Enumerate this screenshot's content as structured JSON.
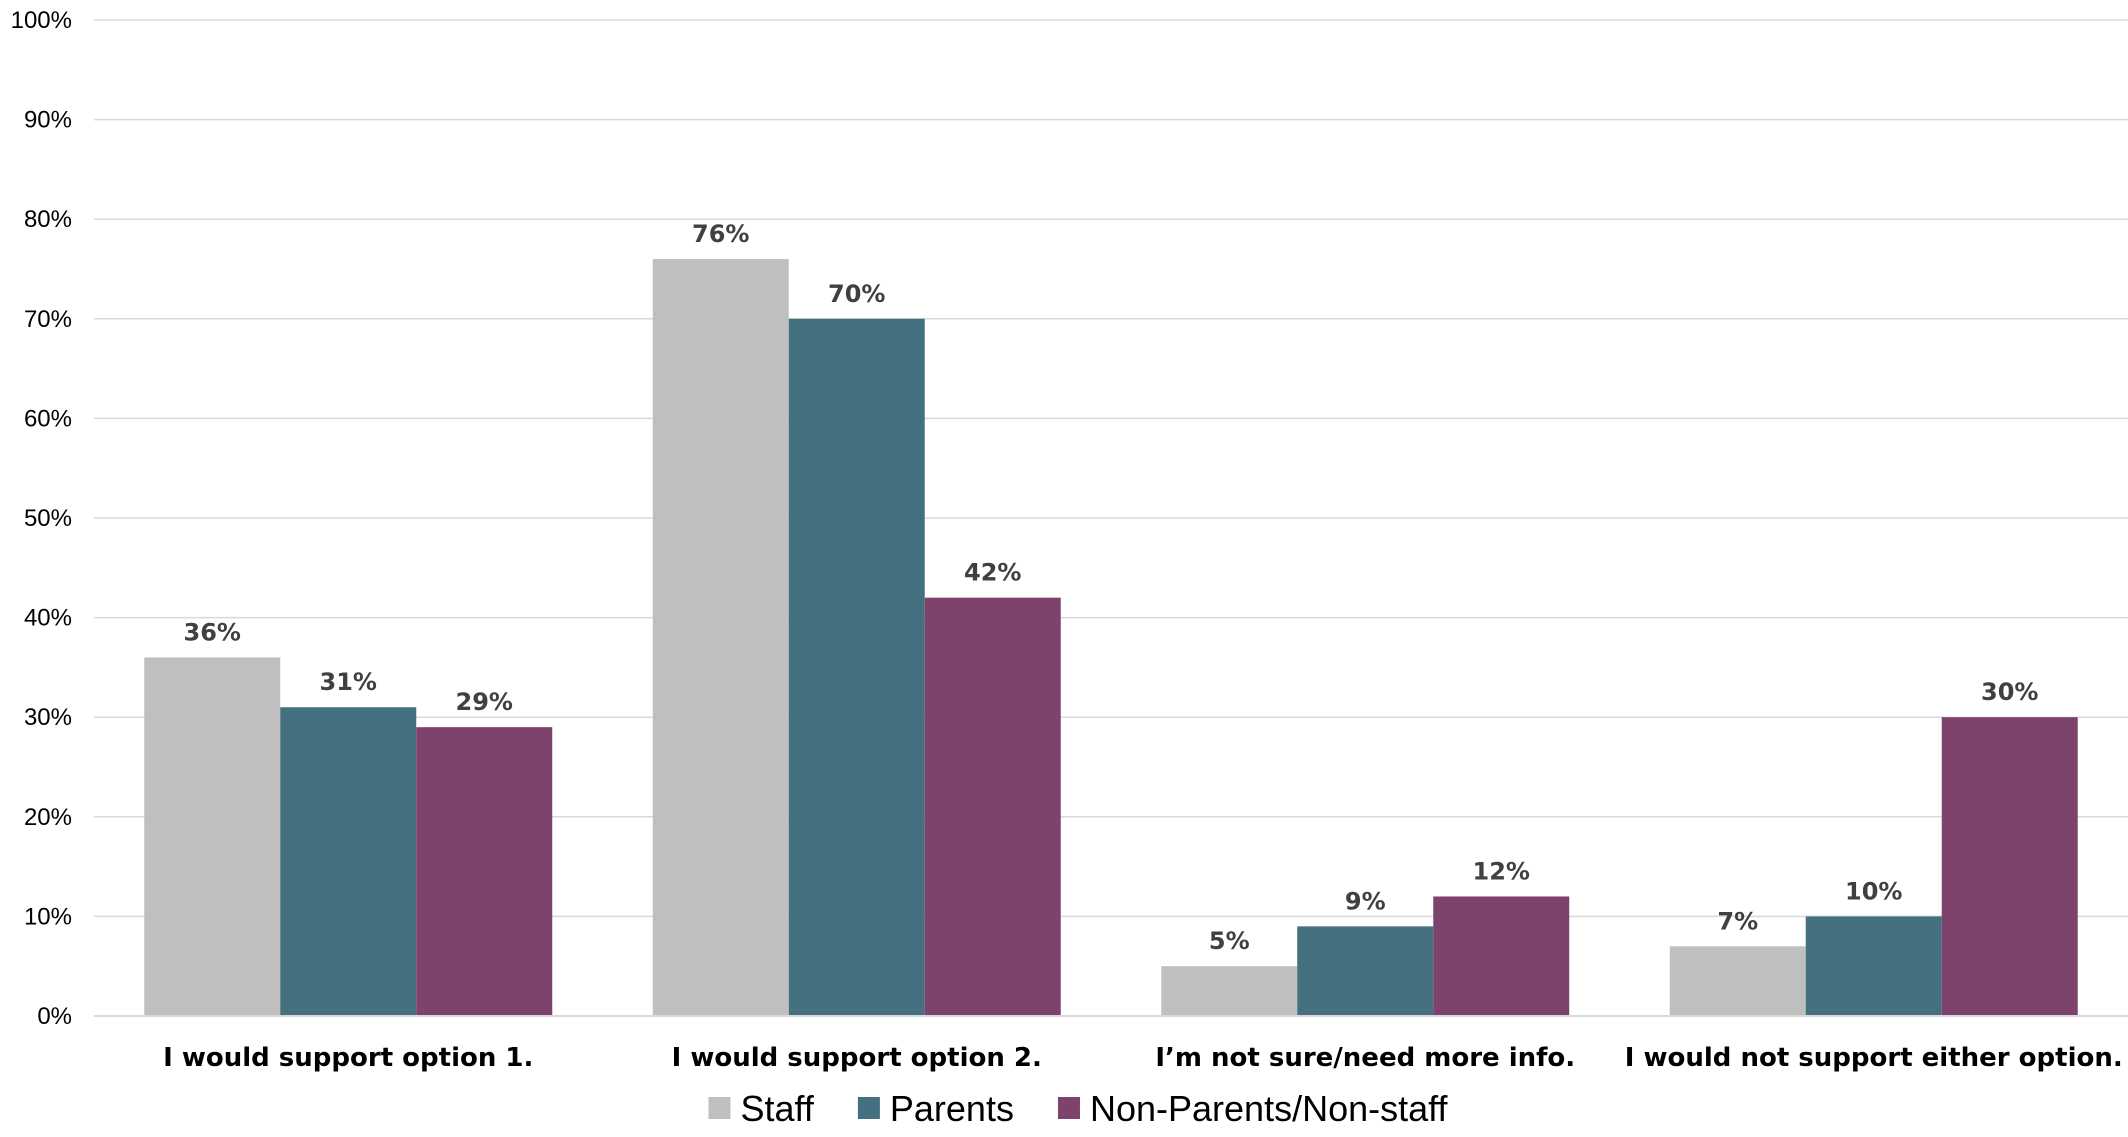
{
  "chart_data": {
    "type": "bar",
    "title": "",
    "xlabel": "",
    "ylabel": "",
    "ylim": [
      0,
      100
    ],
    "y_ticks": [
      "0%",
      "10%",
      "20%",
      "30%",
      "40%",
      "50%",
      "60%",
      "70%",
      "80%",
      "90%",
      "100%"
    ],
    "y_tick_values": [
      0,
      10,
      20,
      30,
      40,
      50,
      60,
      70,
      80,
      90,
      100
    ],
    "grid": true,
    "legend_position": "bottom",
    "categories": [
      "I would support option 1.",
      "I would support option 2.",
      "I’m not sure/need more info.",
      "I would not support either option."
    ],
    "series": [
      {
        "name": "Staff",
        "color": "#bfbfbf",
        "values": [
          36,
          76,
          5,
          7
        ],
        "labels": [
          "36%",
          "76%",
          "5%",
          "7%"
        ]
      },
      {
        "name": "Parents",
        "color": "#44707f",
        "values": [
          31,
          70,
          9,
          10
        ],
        "labels": [
          "31%",
          "70%",
          "9%",
          "10%"
        ]
      },
      {
        "name": "Non-Parents/Non-staff",
        "color": "#7e436d",
        "values": [
          29,
          42,
          12,
          30
        ],
        "labels": [
          "29%",
          "42%",
          "12%",
          "30%"
        ]
      }
    ]
  }
}
